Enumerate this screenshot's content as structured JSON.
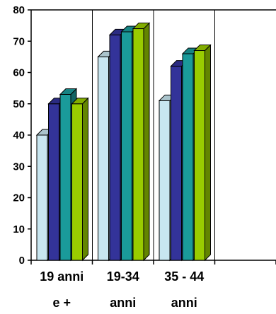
{
  "chart_data": {
    "type": "bar",
    "style": "3d-clustered-column",
    "categories": [
      [
        "19 anni",
        "e +"
      ],
      [
        "19-34",
        "anni"
      ],
      [
        "35 - 44",
        "anni"
      ]
    ],
    "category_count_total": 4,
    "series": [
      {
        "color": "#c8e6f0",
        "values": [
          40,
          65,
          51
        ]
      },
      {
        "color": "#333399",
        "values": [
          50,
          72,
          62
        ]
      },
      {
        "color": "#1a9a9a",
        "values": [
          53,
          73,
          66
        ]
      },
      {
        "color": "#99cc00",
        "values": [
          50,
          74,
          67
        ]
      }
    ],
    "ylim": [
      0,
      80
    ],
    "yticks": [
      "0",
      "10",
      "20",
      "30",
      "40",
      "50",
      "60",
      "70",
      "80"
    ],
    "grid": "vertical-category-dividers",
    "legend": "none"
  }
}
